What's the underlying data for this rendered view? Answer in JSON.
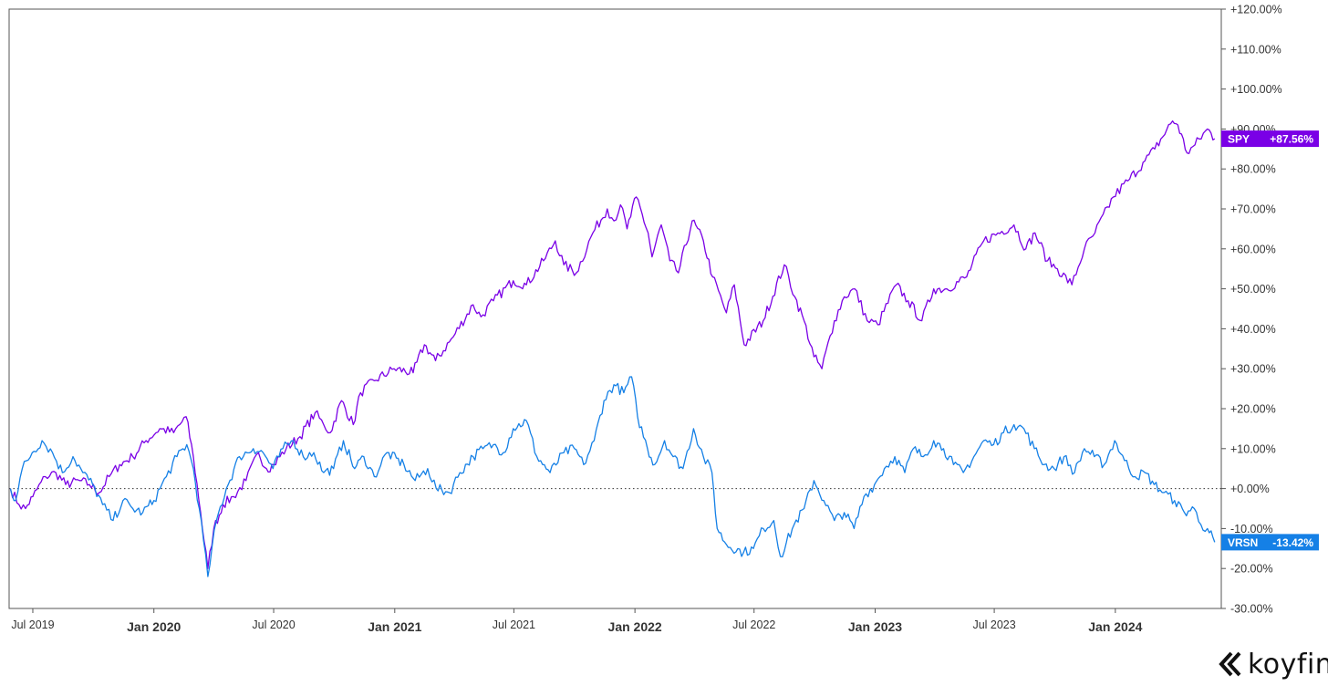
{
  "chart_data": {
    "type": "line",
    "ylim": [
      -30,
      120
    ],
    "y_ticks": [
      "+120.00%",
      "+110.00%",
      "+100.00%",
      "+90.00%",
      "+80.00%",
      "+70.00%",
      "+60.00%",
      "+50.00%",
      "+40.00%",
      "+30.00%",
      "+20.00%",
      "+10.00%",
      "+0.00%",
      "-10.00%",
      "-20.00%",
      "-30.00%"
    ],
    "x_ticks": [
      {
        "label": "Jul 2019",
        "date": "2019-07-01",
        "major": false
      },
      {
        "label": "Jan 2020",
        "date": "2020-01-01",
        "major": true
      },
      {
        "label": "Jul 2020",
        "date": "2020-07-01",
        "major": false
      },
      {
        "label": "Jan 2021",
        "date": "2021-01-01",
        "major": true
      },
      {
        "label": "Jul 2021",
        "date": "2021-07-01",
        "major": false
      },
      {
        "label": "Jan 2022",
        "date": "2022-01-01",
        "major": true
      },
      {
        "label": "Jul 2022",
        "date": "2022-07-01",
        "major": false
      },
      {
        "label": "Jan 2023",
        "date": "2023-01-01",
        "major": true
      },
      {
        "label": "Jul 2023",
        "date": "2023-07-01",
        "major": false
      },
      {
        "label": "Jan 2024",
        "date": "2024-01-01",
        "major": true
      }
    ],
    "xlim": [
      "2019-05-26",
      "2024-06-10"
    ],
    "zero_line": true,
    "series": [
      {
        "name": "SPY",
        "label": "+87.56%",
        "color": "#7a00e6",
        "points": [
          [
            "2019-05-28",
            0
          ],
          [
            "2019-06-10",
            -4
          ],
          [
            "2019-06-20",
            -5
          ],
          [
            "2019-07-01",
            -2
          ],
          [
            "2019-07-20",
            3
          ],
          [
            "2019-08-05",
            4
          ],
          [
            "2019-08-20",
            1
          ],
          [
            "2019-09-10",
            2
          ],
          [
            "2019-09-25",
            1
          ],
          [
            "2019-10-10",
            -1
          ],
          [
            "2019-10-25",
            3
          ],
          [
            "2019-11-10",
            6
          ],
          [
            "2019-11-30",
            8
          ],
          [
            "2019-12-20",
            12
          ],
          [
            "2020-01-10",
            15
          ],
          [
            "2020-01-31",
            14
          ],
          [
            "2020-02-19",
            18
          ],
          [
            "2020-03-01",
            8
          ],
          [
            "2020-03-12",
            -6
          ],
          [
            "2020-03-23",
            -20
          ],
          [
            "2020-04-01",
            -10
          ],
          [
            "2020-04-15",
            -4
          ],
          [
            "2020-05-01",
            -2
          ],
          [
            "2020-05-20",
            2
          ],
          [
            "2020-06-08",
            9
          ],
          [
            "2020-06-20",
            5
          ],
          [
            "2020-07-01",
            6
          ],
          [
            "2020-07-20",
            10
          ],
          [
            "2020-08-10",
            13
          ],
          [
            "2020-09-02",
            19
          ],
          [
            "2020-09-15",
            16
          ],
          [
            "2020-09-25",
            14
          ],
          [
            "2020-10-12",
            22
          ],
          [
            "2020-10-30",
            16
          ],
          [
            "2020-11-10",
            24
          ],
          [
            "2020-12-01",
            27
          ],
          [
            "2020-12-31",
            30
          ],
          [
            "2021-01-29",
            29
          ],
          [
            "2021-02-15",
            36
          ],
          [
            "2021-03-04",
            32
          ],
          [
            "2021-03-31",
            38
          ],
          [
            "2021-04-30",
            46
          ],
          [
            "2021-05-12",
            43
          ],
          [
            "2021-05-31",
            47
          ],
          [
            "2021-06-30",
            52
          ],
          [
            "2021-07-20",
            51
          ],
          [
            "2021-08-15",
            57
          ],
          [
            "2021-09-02",
            62
          ],
          [
            "2021-09-15",
            56
          ],
          [
            "2021-10-04",
            54
          ],
          [
            "2021-10-29",
            64
          ],
          [
            "2021-11-20",
            70
          ],
          [
            "2021-11-30",
            67
          ],
          [
            "2021-12-10",
            71
          ],
          [
            "2021-12-20",
            65
          ],
          [
            "2022-01-03",
            73
          ],
          [
            "2022-01-21",
            64
          ],
          [
            "2022-01-27",
            58
          ],
          [
            "2022-02-10",
            66
          ],
          [
            "2022-02-23",
            57
          ],
          [
            "2022-03-08",
            54
          ],
          [
            "2022-03-29",
            67
          ],
          [
            "2022-04-15",
            62
          ],
          [
            "2022-04-29",
            53
          ],
          [
            "2022-05-20",
            44
          ],
          [
            "2022-06-01",
            51
          ],
          [
            "2022-06-16",
            36
          ],
          [
            "2022-07-15",
            42
          ],
          [
            "2022-08-16",
            56
          ],
          [
            "2022-09-01",
            48
          ],
          [
            "2022-09-15",
            42
          ],
          [
            "2022-09-30",
            33
          ],
          [
            "2022-10-12",
            30
          ],
          [
            "2022-10-31",
            42
          ],
          [
            "2022-11-15",
            48
          ],
          [
            "2022-12-01",
            50
          ],
          [
            "2022-12-20",
            42
          ],
          [
            "2023-01-05",
            41
          ],
          [
            "2023-02-02",
            51
          ],
          [
            "2023-02-20",
            47
          ],
          [
            "2023-03-13",
            42
          ],
          [
            "2023-03-31",
            50
          ],
          [
            "2023-04-20",
            50
          ],
          [
            "2023-05-20",
            53
          ],
          [
            "2023-06-15",
            62
          ],
          [
            "2023-07-31",
            66
          ],
          [
            "2023-08-18",
            60
          ],
          [
            "2023-09-01",
            64
          ],
          [
            "2023-09-20",
            57
          ],
          [
            "2023-10-05",
            55
          ],
          [
            "2023-10-27",
            51
          ],
          [
            "2023-11-15",
            60
          ],
          [
            "2023-12-01",
            64
          ],
          [
            "2023-12-29",
            73
          ],
          [
            "2024-01-20",
            77
          ],
          [
            "2024-02-15",
            82
          ],
          [
            "2024-03-01",
            85
          ],
          [
            "2024-03-28",
            92
          ],
          [
            "2024-04-05",
            91
          ],
          [
            "2024-04-19",
            84
          ],
          [
            "2024-05-01",
            86
          ],
          [
            "2024-05-20",
            90
          ],
          [
            "2024-05-31",
            87.56
          ]
        ]
      },
      {
        "name": "VRSN",
        "label": "-13.42%",
        "color": "#1580e6",
        "points": [
          [
            "2019-05-28",
            0
          ],
          [
            "2019-06-05",
            -3
          ],
          [
            "2019-06-15",
            5
          ],
          [
            "2019-06-30",
            9
          ],
          [
            "2019-07-15",
            12
          ],
          [
            "2019-07-31",
            9
          ],
          [
            "2019-08-15",
            4
          ],
          [
            "2019-08-31",
            8
          ],
          [
            "2019-09-15",
            4
          ],
          [
            "2019-09-30",
            1
          ],
          [
            "2019-10-15",
            -4
          ],
          [
            "2019-10-31",
            -8
          ],
          [
            "2019-11-15",
            -3
          ],
          [
            "2019-11-30",
            -5
          ],
          [
            "2019-12-15",
            -6
          ],
          [
            "2020-01-01",
            -3
          ],
          [
            "2020-01-20",
            3
          ],
          [
            "2020-02-05",
            8
          ],
          [
            "2020-02-20",
            11
          ],
          [
            "2020-03-01",
            5
          ],
          [
            "2020-03-10",
            -5
          ],
          [
            "2020-03-23",
            -22
          ],
          [
            "2020-04-05",
            -8
          ],
          [
            "2020-04-20",
            0
          ],
          [
            "2020-05-10",
            8
          ],
          [
            "2020-05-31",
            10
          ],
          [
            "2020-06-15",
            9
          ],
          [
            "2020-06-30",
            5
          ],
          [
            "2020-07-15",
            10
          ],
          [
            "2020-07-31",
            12
          ],
          [
            "2020-08-15",
            8
          ],
          [
            "2020-08-31",
            9
          ],
          [
            "2020-09-15",
            4
          ],
          [
            "2020-09-30",
            5
          ],
          [
            "2020-10-15",
            12
          ],
          [
            "2020-11-01",
            5
          ],
          [
            "2020-11-15",
            8
          ],
          [
            "2020-12-01",
            3
          ],
          [
            "2020-12-20",
            9
          ],
          [
            "2021-01-15",
            6
          ],
          [
            "2021-02-01",
            2
          ],
          [
            "2021-02-20",
            5
          ],
          [
            "2021-03-05",
            0
          ],
          [
            "2021-03-25",
            -1
          ],
          [
            "2021-04-10",
            4
          ],
          [
            "2021-04-30",
            8
          ],
          [
            "2021-05-15",
            10
          ],
          [
            "2021-05-31",
            11
          ],
          [
            "2021-06-15",
            9
          ],
          [
            "2021-06-30",
            15
          ],
          [
            "2021-07-20",
            17
          ],
          [
            "2021-08-05",
            8
          ],
          [
            "2021-08-25",
            4
          ],
          [
            "2021-09-15",
            9
          ],
          [
            "2021-10-01",
            10
          ],
          [
            "2021-10-15",
            6
          ],
          [
            "2021-10-31",
            12
          ],
          [
            "2021-11-15",
            22
          ],
          [
            "2021-11-30",
            26
          ],
          [
            "2021-12-15",
            24
          ],
          [
            "2021-12-27",
            28
          ],
          [
            "2022-01-05",
            18
          ],
          [
            "2022-01-20",
            10
          ],
          [
            "2022-01-31",
            6
          ],
          [
            "2022-02-15",
            12
          ],
          [
            "2022-02-28",
            8
          ],
          [
            "2022-03-15",
            5
          ],
          [
            "2022-03-31",
            15
          ],
          [
            "2022-04-15",
            8
          ],
          [
            "2022-04-28",
            4
          ],
          [
            "2022-05-06",
            -10
          ],
          [
            "2022-05-20",
            -14
          ],
          [
            "2022-06-15",
            -16
          ],
          [
            "2022-06-30",
            -15
          ],
          [
            "2022-07-15",
            -10
          ],
          [
            "2022-07-31",
            -8
          ],
          [
            "2022-08-10",
            -17
          ],
          [
            "2022-08-31",
            -9
          ],
          [
            "2022-09-15",
            -5
          ],
          [
            "2022-09-30",
            2
          ],
          [
            "2022-10-15",
            -3
          ],
          [
            "2022-10-31",
            -8
          ],
          [
            "2022-11-15",
            -6
          ],
          [
            "2022-11-30",
            -10
          ],
          [
            "2022-12-15",
            -2
          ],
          [
            "2022-12-31",
            1
          ],
          [
            "2023-01-15",
            5
          ],
          [
            "2023-01-31",
            8
          ],
          [
            "2023-02-15",
            4
          ],
          [
            "2023-02-28",
            10
          ],
          [
            "2023-03-15",
            8
          ],
          [
            "2023-03-31",
            12
          ],
          [
            "2023-04-15",
            10
          ],
          [
            "2023-04-30",
            6
          ],
          [
            "2023-05-15",
            4
          ],
          [
            "2023-05-31",
            8
          ],
          [
            "2023-06-15",
            12
          ],
          [
            "2023-06-30",
            11
          ],
          [
            "2023-07-15",
            14
          ],
          [
            "2023-07-31",
            16
          ],
          [
            "2023-08-15",
            15
          ],
          [
            "2023-08-31",
            10
          ],
          [
            "2023-09-15",
            6
          ],
          [
            "2023-09-30",
            5
          ],
          [
            "2023-10-15",
            8
          ],
          [
            "2023-10-31",
            4
          ],
          [
            "2023-11-15",
            10
          ],
          [
            "2023-11-30",
            8
          ],
          [
            "2023-12-15",
            6
          ],
          [
            "2023-12-31",
            12
          ],
          [
            "2024-01-15",
            7
          ],
          [
            "2024-01-31",
            3
          ],
          [
            "2024-02-15",
            4
          ],
          [
            "2024-02-29",
            1
          ],
          [
            "2024-03-15",
            -1
          ],
          [
            "2024-03-31",
            -3
          ],
          [
            "2024-04-15",
            -6
          ],
          [
            "2024-04-30",
            -5
          ],
          [
            "2024-05-10",
            -9
          ],
          [
            "2024-05-20",
            -10
          ],
          [
            "2024-05-31",
            -13.42
          ]
        ]
      }
    ]
  },
  "brand": {
    "name": "koyfin"
  }
}
